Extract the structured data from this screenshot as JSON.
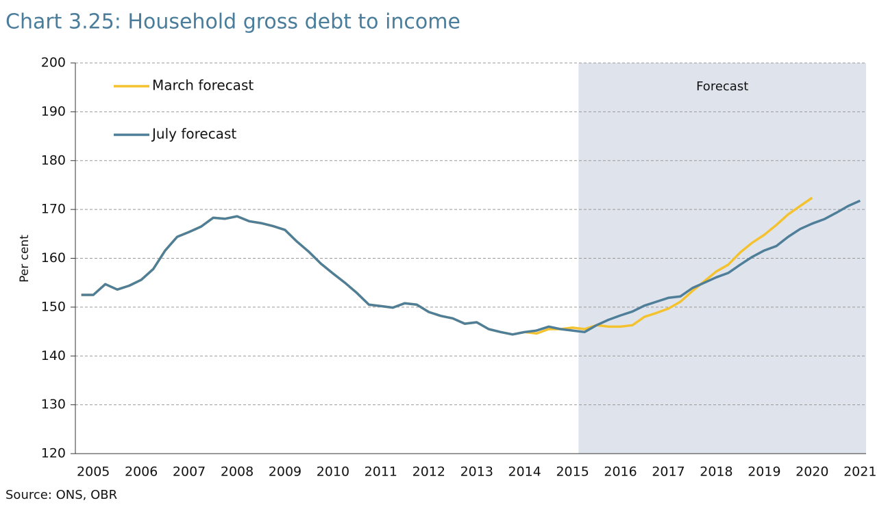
{
  "chart_data": {
    "type": "line",
    "title": "Chart 3.25: Household gross debt to income",
    "y_label": "Per cent",
    "source": "Source: ONS, OBR",
    "annotation": "Forecast",
    "categories": [
      null,
      "2005",
      null,
      null,
      null,
      "2006",
      null,
      null,
      null,
      "2007",
      null,
      null,
      null,
      "2008",
      null,
      null,
      null,
      "2009",
      null,
      null,
      null,
      "2010",
      null,
      null,
      null,
      "2011",
      null,
      null,
      null,
      "2012",
      null,
      null,
      null,
      "2013",
      null,
      null,
      null,
      "2014",
      null,
      null,
      null,
      "2015",
      null,
      null,
      null,
      "2016",
      null,
      null,
      null,
      "2017",
      null,
      null,
      null,
      "2018",
      null,
      null,
      null,
      "2019",
      null,
      null,
      null,
      "2020",
      null,
      null,
      null,
      "2021"
    ],
    "series": [
      {
        "name": "March forecast",
        "color": "#f5c22f",
        "values": [
          152.5,
          152.5,
          154.7,
          153.6,
          154.4,
          155.6,
          157.8,
          161.6,
          164.4,
          165.4,
          166.5,
          168.3,
          168.1,
          168.6,
          167.6,
          167.2,
          166.6,
          165.8,
          163.4,
          161.3,
          158.9,
          156.9,
          155.0,
          152.9,
          150.5,
          150.2,
          149.9,
          150.8,
          150.5,
          149.0,
          148.2,
          147.7,
          146.6,
          146.9,
          145.5,
          144.9,
          144.4,
          144.9,
          144.6,
          145.5,
          145.5,
          145.8,
          145.5,
          146.3,
          146.0,
          146.0,
          146.3,
          148.0,
          148.8,
          149.7,
          151.1,
          153.3,
          155.3,
          157.3,
          158.7,
          161.2,
          163.2,
          164.8,
          166.8,
          169.0,
          170.7,
          172.4,
          null,
          null,
          null,
          null
        ]
      },
      {
        "name": "July forecast",
        "color": "#4f7e99",
        "values": [
          152.5,
          152.5,
          154.7,
          153.6,
          154.4,
          155.6,
          157.8,
          161.6,
          164.4,
          165.4,
          166.5,
          168.3,
          168.1,
          168.6,
          167.6,
          167.2,
          166.6,
          165.8,
          163.4,
          161.3,
          158.9,
          156.9,
          155.0,
          152.9,
          150.5,
          150.2,
          149.9,
          150.8,
          150.5,
          149.0,
          148.2,
          147.7,
          146.6,
          146.9,
          145.5,
          144.9,
          144.4,
          144.9,
          145.2,
          146.0,
          145.5,
          145.2,
          144.9,
          146.3,
          147.4,
          148.3,
          149.1,
          150.3,
          151.1,
          151.9,
          152.2,
          153.9,
          155.0,
          156.1,
          157.0,
          158.7,
          160.3,
          161.6,
          162.5,
          164.4,
          166.0,
          167.1,
          168.0,
          169.3,
          170.7,
          171.8
        ]
      }
    ],
    "ylim": [
      120,
      200
    ],
    "yticks": [
      120,
      130,
      140,
      150,
      160,
      170,
      180,
      190,
      200
    ],
    "grid": true
  }
}
